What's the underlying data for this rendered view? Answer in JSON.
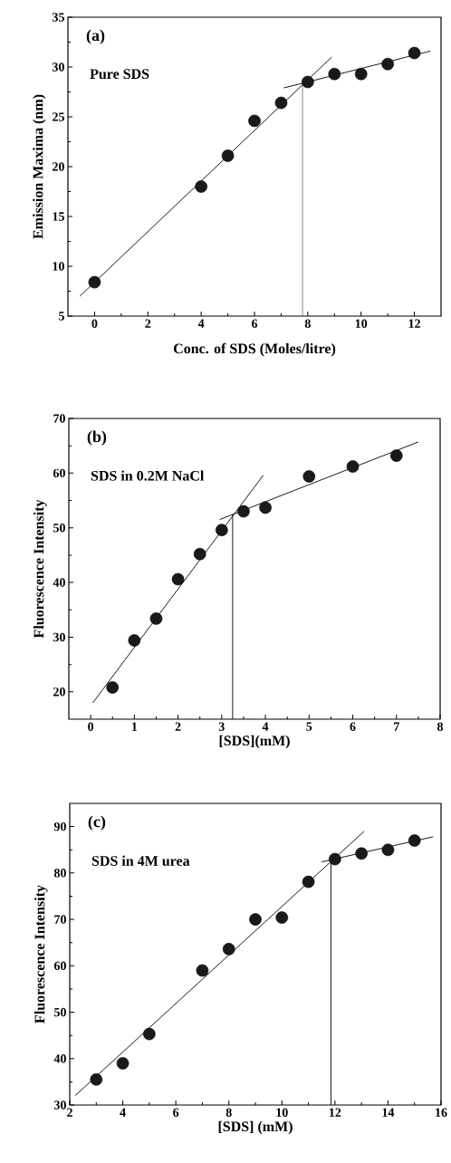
{
  "chart_data": [
    {
      "type": "scatter",
      "xlabel": "Conc. of SDS (Moles/litre)",
      "ylabel": "Emission Maxima (nm)",
      "annotations": [
        "(a)",
        "Pure SDS"
      ],
      "grid": false,
      "marker": "circle",
      "xlim": [
        -1,
        13
      ],
      "xticks": [
        0,
        2,
        4,
        6,
        8,
        10,
        12
      ],
      "ylim": [
        5,
        35
      ],
      "yticks": [
        5,
        10,
        15,
        20,
        25,
        30,
        35
      ],
      "series": [
        {
          "color": "#1a1a1a",
          "x": [
            0,
            4,
            5,
            6,
            7,
            8,
            9,
            10,
            11,
            12
          ],
          "values": [
            8.4,
            18,
            21.1,
            24.6,
            26.4,
            28.5,
            29.3,
            29.3,
            30.3,
            31.4
          ]
        },
        {
          "type": "line",
          "marker": "none",
          "color": "#000000",
          "x": [
            -0.55,
            8.9
          ],
          "values": [
            7.0,
            31.0
          ]
        },
        {
          "type": "line",
          "marker": "none",
          "color": "#000000",
          "x": [
            7.1,
            12.6
          ],
          "values": [
            27.9,
            31.6
          ]
        },
        {
          "type": "line",
          "marker": "none",
          "color": "#666666",
          "x": [
            7.8,
            7.8
          ],
          "values": [
            5,
            28.3
          ]
        }
      ]
    },
    {
      "type": "scatter",
      "xlabel": "[SDS](mM)",
      "ylabel": "Fluorescence Intensity",
      "annotations": [
        "(b)",
        "SDS in 0.2M NaCl"
      ],
      "grid": false,
      "marker": "circle",
      "xlim": [
        -0.5,
        8
      ],
      "xticks": [
        0,
        1,
        2,
        3,
        4,
        5,
        6,
        7,
        8
      ],
      "ylim": [
        15,
        70
      ],
      "yticks": [
        20,
        30,
        40,
        50,
        60,
        70
      ],
      "series": [
        {
          "color": "#1a1a1a",
          "x": [
            0.5,
            1,
            1.5,
            2,
            2.5,
            3,
            3.5,
            4,
            5,
            6,
            7
          ],
          "values": [
            20.8,
            29.4,
            33.4,
            40.6,
            45.2,
            49.6,
            53,
            53.7,
            59.4,
            61.2,
            63.2
          ]
        },
        {
          "type": "line",
          "marker": "none",
          "color": "#000000",
          "x": [
            0.05,
            3.95
          ],
          "values": [
            18,
            59.6
          ]
        },
        {
          "type": "line",
          "marker": "none",
          "color": "#000000",
          "x": [
            2.95,
            7.5
          ],
          "values": [
            51.5,
            65.7
          ]
        },
        {
          "type": "line",
          "marker": "none",
          "color": "#000000",
          "x": [
            3.25,
            3.25
          ],
          "values": [
            15,
            52.5
          ]
        }
      ]
    },
    {
      "type": "scatter",
      "xlabel": "[SDS] (mM)",
      "ylabel": "Fluorescence Intensity",
      "annotations": [
        "(c)",
        "SDS in 4M urea"
      ],
      "grid": false,
      "marker": "circle",
      "xlim": [
        2,
        16
      ],
      "xticks": [
        2,
        4,
        6,
        8,
        10,
        12,
        14,
        16
      ],
      "ylim": [
        30,
        95
      ],
      "yticks": [
        30,
        40,
        50,
        60,
        70,
        80,
        90
      ],
      "series": [
        {
          "color": "#1a1a1a",
          "x": [
            3,
            4,
            5,
            7,
            8,
            9,
            10,
            11,
            12,
            13,
            14,
            15
          ],
          "values": [
            35.5,
            39,
            45.3,
            59,
            63.6,
            70,
            70.4,
            78.1,
            83,
            84.2,
            85,
            87
          ]
        },
        {
          "type": "line",
          "marker": "none",
          "color": "#000000",
          "x": [
            2.2,
            13.1
          ],
          "values": [
            32,
            89
          ]
        },
        {
          "type": "line",
          "marker": "none",
          "color": "#000000",
          "x": [
            11.5,
            15.7
          ],
          "values": [
            82.4,
            87.8
          ]
        },
        {
          "type": "line",
          "marker": "none",
          "color": "#000000",
          "x": [
            11.85,
            11.85
          ],
          "values": [
            30,
            82.7
          ]
        }
      ]
    }
  ]
}
